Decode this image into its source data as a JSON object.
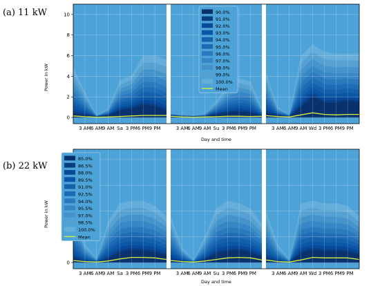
{
  "chart_data": [
    {
      "type": "area",
      "panel_label": "(a) 11 kW",
      "xlabel": "Day and time",
      "ylabel": "Power in kW",
      "ylim": [
        -0.6,
        11
      ],
      "yticks": [
        0,
        2,
        4,
        6,
        8,
        10
      ],
      "grid": true,
      "legend_placement": "upper-center",
      "background_color": "#4DA3D8",
      "days": [
        {
          "day": "Sa",
          "tick_labels": [
            "3 AM",
            "6 AM",
            "9 AM",
            "Sa",
            "3 PM",
            "6 PM",
            "9 PM"
          ]
        },
        {
          "day": "Su",
          "tick_labels": [
            "3 AM",
            "6 AM",
            "9 AM",
            "Su",
            "3 PM",
            "6 PM",
            "9 PM"
          ]
        },
        {
          "day": "Wd",
          "tick_labels": [
            "3 AM",
            "6 AM",
            "9 AM",
            "Wd",
            "3 PM",
            "6 PM",
            "9 PM"
          ]
        }
      ],
      "series": [
        {
          "name": "90.0%",
          "color": "#08306B"
        },
        {
          "name": "91.0%",
          "color": "#083D7F"
        },
        {
          "name": "92.0%",
          "color": "#08499A"
        },
        {
          "name": "93.0%",
          "color": "#0A56A6"
        },
        {
          "name": "94.0%",
          "color": "#1460AB"
        },
        {
          "name": "95.0%",
          "color": "#1E6BB5"
        },
        {
          "name": "96.0%",
          "color": "#2A78BD"
        },
        {
          "name": "97.0%",
          "color": "#3785C4"
        },
        {
          "name": "98.0%",
          "color": "#4592CA"
        },
        {
          "name": "99.0%",
          "color": "#55A0D1"
        },
        {
          "name": "100.0%",
          "color": "#66AEDA"
        },
        {
          "name": "Mean",
          "color": "#D4F23B"
        }
      ],
      "hours": [
        0,
        3,
        6,
        9,
        12,
        15,
        18,
        21,
        24
      ],
      "envelopes": {
        "Sa": {
          "max": [
            4.9,
            2.5,
            0.2,
            0.9,
            3.6,
            4.1,
            6.0,
            6.0,
            5.6
          ],
          "min": [
            0.3,
            0.2,
            0.1,
            0.2,
            0.6,
            0.8,
            1.1,
            1.0,
            0.5
          ]
        },
        "Su": {
          "max": [
            0.4,
            0.3,
            0.2,
            0.4,
            1.6,
            3.1,
            3.8,
            3.5,
            0.9
          ],
          "min": [
            0.2,
            0.1,
            0.1,
            0.1,
            0.3,
            0.4,
            0.5,
            0.4,
            0.2
          ]
        },
        "Wd": {
          "max": [
            4.4,
            1.0,
            0.3,
            6.0,
            7.1,
            6.4,
            6.2,
            6.2,
            6.2
          ],
          "min": [
            0.4,
            0.2,
            0.1,
            0.9,
            1.9,
            1.3,
            1.3,
            1.5,
            1.3
          ]
        }
      },
      "mean": {
        "Sa": [
          0.15,
          0.08,
          0.03,
          0.05,
          0.1,
          0.15,
          0.2,
          0.2,
          0.2
        ],
        "Su": [
          0.12,
          0.05,
          0.03,
          0.05,
          0.08,
          0.12,
          0.12,
          0.1,
          0.12
        ],
        "Wd": [
          0.18,
          0.1,
          0.05,
          0.25,
          0.45,
          0.3,
          0.25,
          0.3,
          0.3
        ]
      }
    },
    {
      "type": "area",
      "panel_label": "(b) 22 kW",
      "xlabel": "Day and time",
      "ylabel": "Power in kW",
      "ylim": [
        -1.2,
        22
      ],
      "yticks": [
        0,
        5,
        10,
        15,
        20
      ],
      "grid": true,
      "legend_placement": "upper-left",
      "background_color": "#4DA3D8",
      "days": [
        {
          "day": "Sa",
          "tick_labels": [
            "3 AM",
            "6 AM",
            "9 AM",
            "Sa",
            "3 PM",
            "6 PM",
            "9 PM"
          ]
        },
        {
          "day": "Su",
          "tick_labels": [
            "3 AM",
            "6 AM",
            "9 AM",
            "Su",
            "3 PM",
            "6 PM",
            "9 PM"
          ]
        },
        {
          "day": "Wd",
          "tick_labels": [
            "3 AM",
            "6 AM",
            "9 AM",
            "Wd",
            "3 PM",
            "6 PM",
            "9 PM"
          ]
        }
      ],
      "series": [
        {
          "name": "85.0%",
          "color": "#08306B"
        },
        {
          "name": "86.5%",
          "color": "#083D7F"
        },
        {
          "name": "88.0%",
          "color": "#08499A"
        },
        {
          "name": "89.5%",
          "color": "#0A56A6"
        },
        {
          "name": "91.0%",
          "color": "#1460AB"
        },
        {
          "name": "92.5%",
          "color": "#1E6BB5"
        },
        {
          "name": "94.0%",
          "color": "#2A78BD"
        },
        {
          "name": "95.5%",
          "color": "#3785C4"
        },
        {
          "name": "97.0%",
          "color": "#4592CA"
        },
        {
          "name": "98.5%",
          "color": "#55A0D1"
        },
        {
          "name": "100.0%",
          "color": "#66AEDA"
        },
        {
          "name": "Mean",
          "color": "#D4F23B"
        }
      ],
      "hours": [
        0,
        3,
        6,
        9,
        12,
        15,
        18,
        21,
        24
      ],
      "envelopes": {
        "Sa": {
          "max": [
            10.5,
            3.5,
            0.8,
            8.0,
            11.5,
            12.0,
            12.0,
            11.0,
            9.0
          ],
          "min": [
            0.5,
            0.2,
            0.1,
            0.6,
            1.8,
            2.2,
            2.0,
            1.8,
            1.2
          ]
        },
        "Su": {
          "max": [
            9.0,
            3.0,
            0.5,
            5.0,
            10.5,
            12.0,
            11.5,
            10.5,
            7.5
          ],
          "min": [
            0.4,
            0.2,
            0.1,
            0.5,
            1.6,
            2.0,
            2.1,
            1.8,
            1.0
          ]
        },
        "Wd": {
          "max": [
            10.0,
            3.5,
            0.5,
            11.5,
            12.0,
            11.5,
            11.5,
            11.0,
            9.0
          ],
          "min": [
            0.5,
            0.2,
            0.1,
            1.6,
            2.2,
            2.0,
            2.0,
            1.9,
            1.3
          ]
        }
      },
      "mean": {
        "Sa": [
          0.4,
          0.2,
          0.1,
          0.3,
          0.7,
          1.0,
          1.0,
          0.9,
          0.6
        ],
        "Su": [
          0.4,
          0.2,
          0.1,
          0.3,
          0.6,
          0.9,
          1.0,
          0.9,
          0.5
        ],
        "Wd": [
          0.5,
          0.2,
          0.1,
          0.5,
          1.0,
          0.9,
          0.9,
          0.9,
          0.6
        ]
      }
    }
  ]
}
